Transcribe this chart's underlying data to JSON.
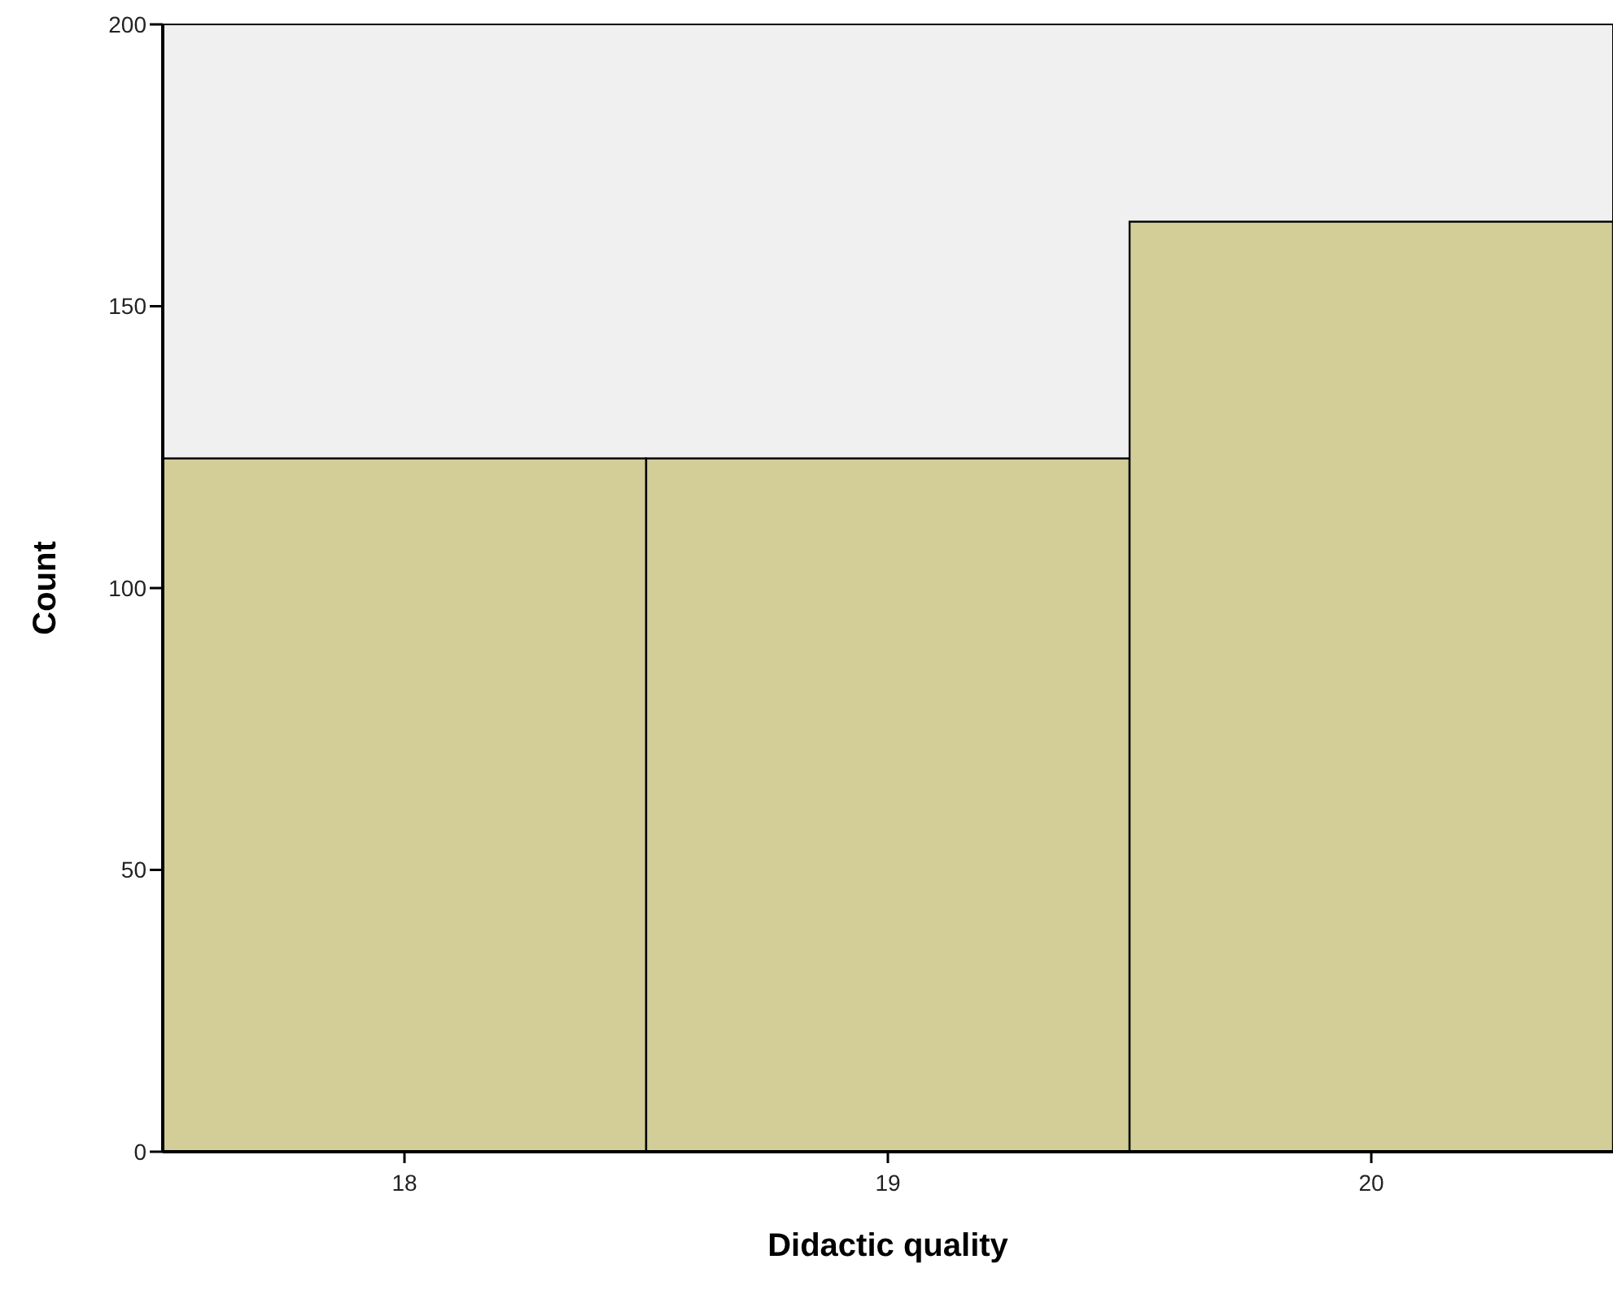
{
  "chart_data": {
    "type": "histogram",
    "xlabel": "Didactic quality",
    "ylabel": "Count",
    "bins": [
      17.5,
      18.5,
      19.5,
      20.5
    ],
    "values": [
      123,
      123,
      165
    ],
    "color": "#d3ce98",
    "xlim": [
      17.5,
      20.5
    ],
    "xticks": [
      18,
      19,
      20
    ],
    "ylim": [
      0,
      200
    ],
    "yticks": [
      0,
      50,
      100,
      150,
      200
    ],
    "grid": false
  }
}
